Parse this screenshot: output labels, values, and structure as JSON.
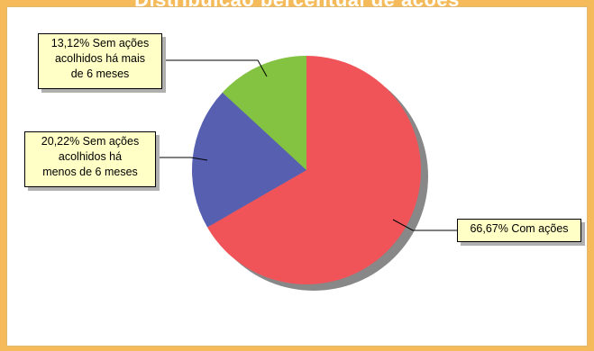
{
  "chart_data": {
    "type": "pie",
    "title": "Distribuição percentual de ações",
    "slices": [
      {
        "label": "66,67% Com ações",
        "value": 66.67,
        "color": "#f05459"
      },
      {
        "label": "20,22% Sem ações\nacolhidos há\nmenos de 6 meses",
        "value": 20.22,
        "color": "#565fb0"
      },
      {
        "label": "13,12% Sem ações\nacolhidos há mais\nde 6 meses",
        "value": 13.12,
        "color": "#84c341"
      }
    ]
  },
  "colors": {
    "background": "#f5bb5a",
    "panel": "#ffffff",
    "callout_fill": "#ffffc6",
    "shadow": "#888888"
  }
}
